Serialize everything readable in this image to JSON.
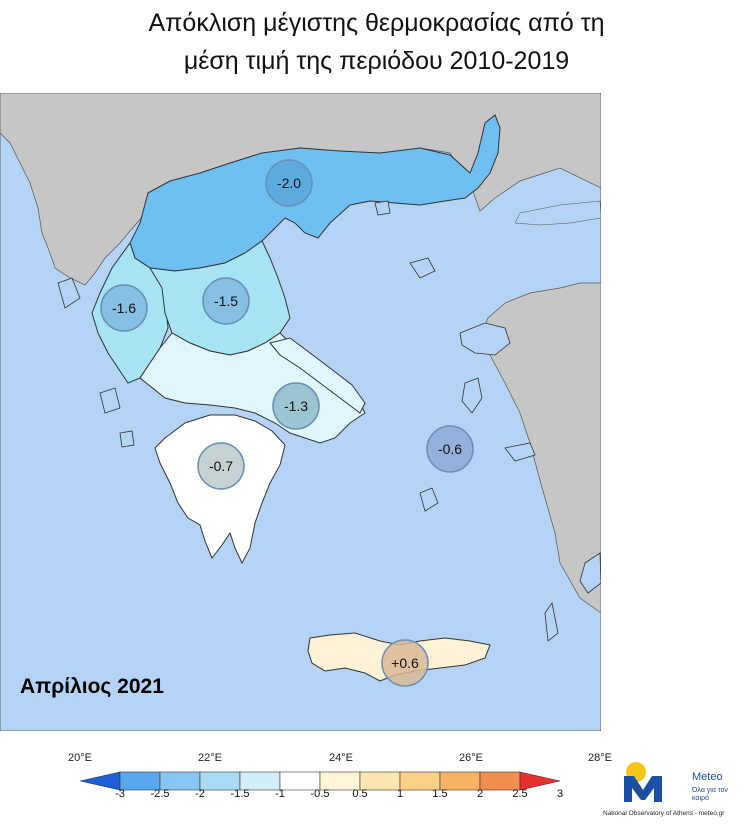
{
  "title_line1": "Απόκλιση μέγιστης θερμοκρασίας από τη",
  "title_line2": "μέση τιμή της περιόδου 2010-2019",
  "date_label": "Απρίλιος 2021",
  "colors": {
    "sea": "#b4d3f5",
    "land_outside": "#c6c6c6",
    "border": "#3a3a3a",
    "bin_m2_to_m1_5": "#6fbff2",
    "bin_m1_5_to_m1": "#a6e4f5",
    "bin_m1_to_m0_5": "#dff7fb",
    "bin_m0_5_to_0_5": "#ffffff",
    "bin_0_5_to_1": "#fdf2d6",
    "circle_stroke": "#6a8fb5"
  },
  "regions": [
    {
      "name": "Thrace-Macedonia",
      "value": "-2.0"
    },
    {
      "name": "Epirus",
      "value": "-1.6"
    },
    {
      "name": "Thessaly",
      "value": "-1.5"
    },
    {
      "name": "Central Greece",
      "value": "-1.3"
    },
    {
      "name": "Aegean",
      "value": "-0.6"
    },
    {
      "name": "Peloponnese",
      "value": "-0.7"
    },
    {
      "name": "Crete",
      "value": "+0.6"
    }
  ],
  "longitude_labels": [
    "20°E",
    "22°E",
    "24°E",
    "26°E",
    "28°E"
  ],
  "colorbar": {
    "ticks": [
      "-3",
      "-2.5",
      "-2",
      "-1.5",
      "-1",
      "-0.5",
      "0.5",
      "1",
      "1.5",
      "2",
      "2.5",
      "3"
    ],
    "colors": [
      "#3c8ce6",
      "#57a8ee",
      "#86c7f3",
      "#a9dbf6",
      "#d2eefa",
      "#ffffff",
      "#fff5d9",
      "#fde7b0",
      "#fbcf84",
      "#f8b263",
      "#f38f4c",
      "#ee5b3d"
    ]
  },
  "logo": {
    "name": "Meteo",
    "tagline": "Όλα για τον καιρό",
    "footer": "National Observatory of Athens - meteo.gr",
    "brand_color": "#1a4fa3",
    "sun_color": "#f5c518"
  }
}
